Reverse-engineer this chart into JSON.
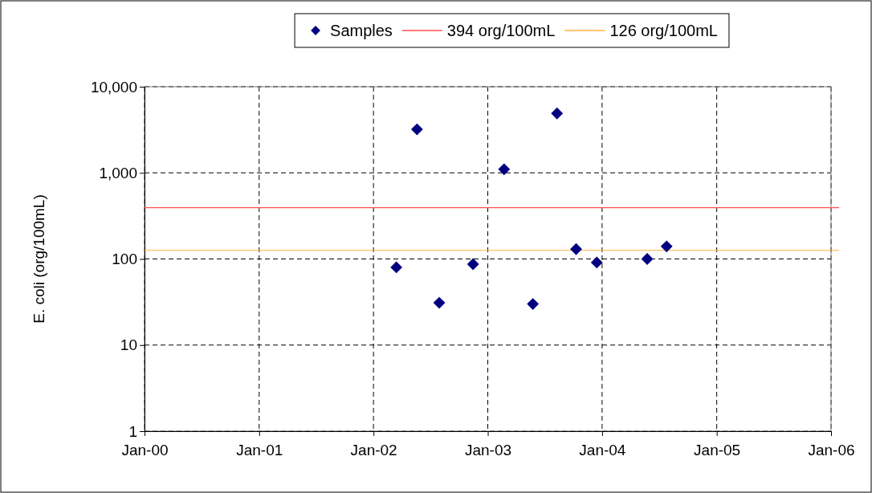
{
  "chart_data": {
    "type": "scatter",
    "ylabel": "E. coli (org/100mL)",
    "x": [
      "2002-03-15",
      "2002-05-20",
      "2002-07-30",
      "2002-11-15",
      "2003-02-22",
      "2003-05-25",
      "2003-08-10",
      "2003-10-10",
      "2003-12-15",
      "2004-05-24",
      "2004-07-25"
    ],
    "series": [
      {
        "name": "Samples",
        "color": "#000080",
        "values": [
          80,
          3200,
          31,
          87,
          1100,
          30,
          4900,
          130,
          91,
          100,
          140
        ]
      }
    ],
    "ref_lines": [
      {
        "axis": "y",
        "value": 394,
        "label": "394 org/100mL",
        "color": "#ff5050"
      },
      {
        "axis": "y",
        "value": 126,
        "label": "126 org/100mL",
        "color": "#ffb040"
      }
    ],
    "xlim": [
      "2000-01-01",
      "2006-01-01"
    ],
    "xticks": [
      {
        "value": "2000-01-01",
        "label": "Jan-00"
      },
      {
        "value": "2001-01-01",
        "label": "Jan-01"
      },
      {
        "value": "2002-01-01",
        "label": "Jan-02"
      },
      {
        "value": "2003-01-01",
        "label": "Jan-03"
      },
      {
        "value": "2004-01-01",
        "label": "Jan-04"
      },
      {
        "value": "2005-01-01",
        "label": "Jan-05"
      },
      {
        "value": "2006-01-01",
        "label": "Jan-06"
      }
    ],
    "ylim": [
      1,
      10000
    ],
    "yticks": [
      1,
      10,
      100,
      {
        "value": 1000,
        "label": "1,000"
      },
      {
        "value": 10000,
        "label": "10,000"
      }
    ],
    "log": true,
    "grid": true,
    "legend": "top",
    "marker": "diamond",
    "line_style": "dashed"
  }
}
